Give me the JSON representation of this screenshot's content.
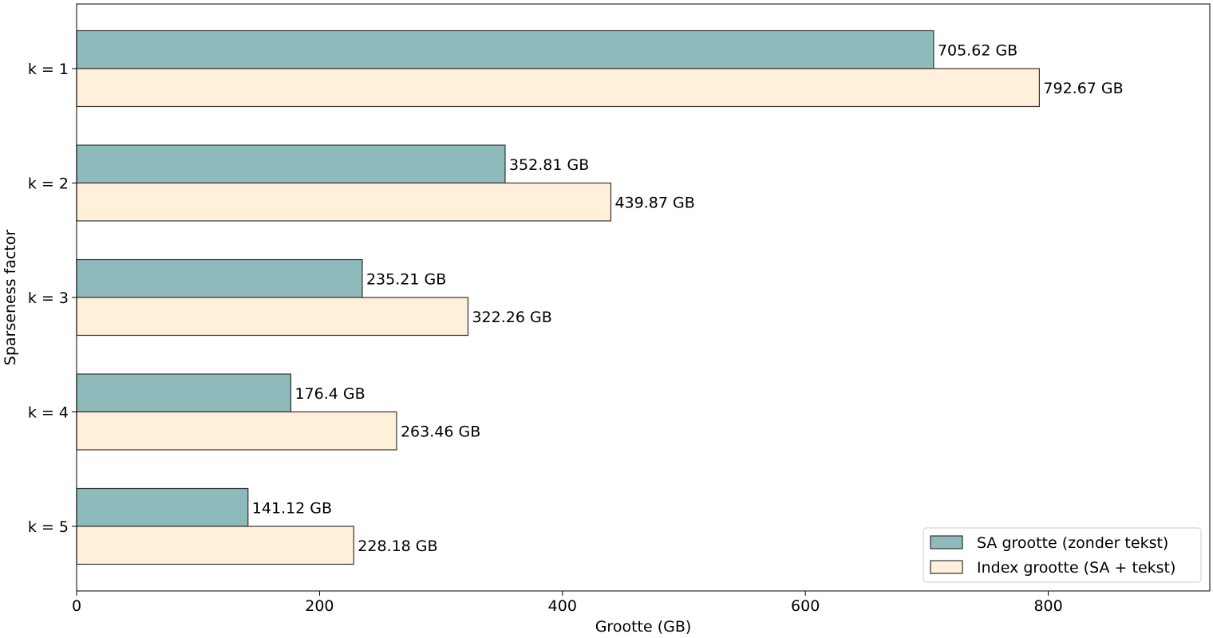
{
  "chart_data": {
    "type": "bar",
    "orientation": "horizontal",
    "categories": [
      "k = 1",
      "k = 2",
      "k = 3",
      "k = 4",
      "k = 5"
    ],
    "series": [
      {
        "name": "SA grootte (zonder tekst)",
        "values": [
          705.62,
          352.81,
          235.21,
          176.4,
          141.12
        ],
        "labels": [
          "705.62 GB",
          "352.81 GB",
          "235.21 GB",
          "176.4 GB",
          "141.12 GB"
        ],
        "color": "#8fbabb"
      },
      {
        "name": "Index grootte (SA + tekst)",
        "values": [
          792.67,
          439.87,
          322.26,
          263.46,
          228.18
        ],
        "labels": [
          "792.67 GB",
          "439.87 GB",
          "322.26 GB",
          "263.46 GB",
          "228.18 GB"
        ],
        "color": "#ffefdb"
      }
    ],
    "xlabel": "Grootte (GB)",
    "ylabel": "Sparseness factor",
    "xlim": [
      0,
      933
    ],
    "xticks": [
      0,
      200,
      400,
      600,
      800
    ],
    "grid": false,
    "legend_position": "lower right",
    "bar_edge_color": "#333333"
  }
}
